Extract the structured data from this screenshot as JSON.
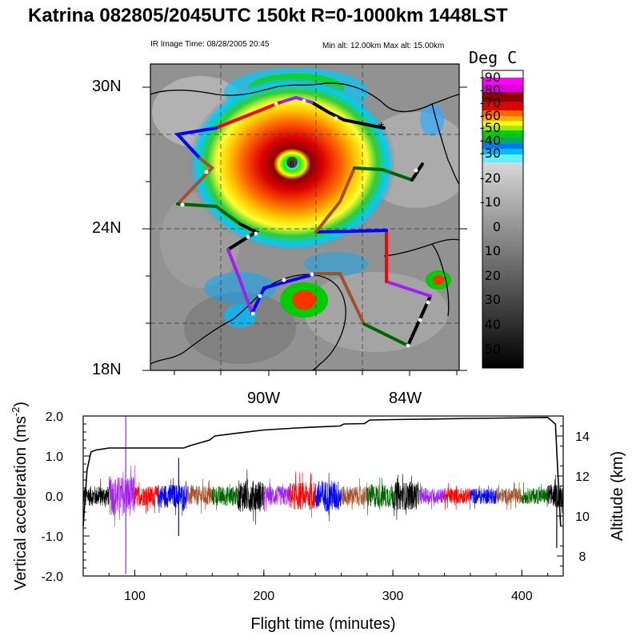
{
  "title": "Katrina 082805/2045UTC 150kt  R=0-1000km 1448LST",
  "map": {
    "ir_time": "IR Image Time: 08/28/2005 20:45",
    "alt_range": "Min alt: 12.00km  Max alt: 15.00km",
    "lat_labels": [
      "30N",
      "24N",
      "18N"
    ],
    "lon_labels": [
      "90W",
      "84W"
    ],
    "colorbar": {
      "title": "Deg C",
      "labels": [
        "-90",
        "-80",
        "-70",
        "-60",
        "-50",
        "-40",
        "-30",
        "-20",
        "-10",
        "0",
        "10",
        "20",
        "30",
        "40",
        "50"
      ]
    },
    "track_colors": [
      "#ff0000",
      "#0000ff",
      "#a0522d",
      "#006400",
      "#000000",
      "#a020f0"
    ]
  },
  "chart_data": {
    "type": "line",
    "xlabel": "Flight time (minutes)",
    "ylabel": "Vertical acceleration (ms",
    "ylabel_sup": "-2",
    "ylabel_close": ")",
    "y2label": "Altitude (km)",
    "xlim": [
      60,
      432
    ],
    "ylim": [
      -2.0,
      2.0
    ],
    "y2lim": [
      7,
      15
    ],
    "x_ticks": [
      "100",
      "200",
      "300",
      "400"
    ],
    "y_ticks": [
      "2.0",
      "1.0",
      "0.0",
      "-1.0",
      "-2.0"
    ],
    "y2_ticks": [
      "14",
      "12",
      "10",
      "8"
    ],
    "altitude_series": {
      "name": "Altitude",
      "x": [
        60,
        63,
        66,
        70,
        80,
        100,
        120,
        138,
        142,
        158,
        162,
        180,
        200,
        225,
        240,
        259,
        262,
        278,
        282,
        300,
        330,
        360,
        390,
        420,
        426,
        428,
        430
      ],
      "y": [
        9.5,
        12.3,
        13.2,
        13.3,
        13.4,
        13.4,
        13.4,
        13.4,
        13.5,
        13.8,
        14.0,
        14.15,
        14.3,
        14.4,
        14.45,
        14.5,
        14.6,
        14.62,
        14.8,
        14.82,
        14.85,
        14.88,
        14.9,
        14.93,
        14.6,
        12.0,
        9.5
      ]
    },
    "acceleration_segments": [
      {
        "color": "#000000",
        "x": [
          60,
          80
        ],
        "amp": 0.25
      },
      {
        "color": "#a020f0",
        "x": [
          80,
          100
        ],
        "amp": 0.5
      },
      {
        "color": "#ff0000",
        "x": [
          100,
          118
        ],
        "amp": 0.25
      },
      {
        "color": "#0000ff",
        "x": [
          118,
          140
        ],
        "amp": 0.3
      },
      {
        "color": "#a0522d",
        "x": [
          140,
          160
        ],
        "amp": 0.25
      },
      {
        "color": "#006400",
        "x": [
          160,
          180
        ],
        "amp": 0.25
      },
      {
        "color": "#000000",
        "x": [
          180,
          200
        ],
        "amp": 0.4
      },
      {
        "color": "#a020f0",
        "x": [
          200,
          220
        ],
        "amp": 0.25
      },
      {
        "color": "#ff0000",
        "x": [
          220,
          240
        ],
        "amp": 0.35
      },
      {
        "color": "#0000ff",
        "x": [
          240,
          260
        ],
        "amp": 0.4
      },
      {
        "color": "#a0522d",
        "x": [
          260,
          280
        ],
        "amp": 0.25
      },
      {
        "color": "#006400",
        "x": [
          280,
          300
        ],
        "amp": 0.3
      },
      {
        "color": "#000000",
        "x": [
          300,
          320
        ],
        "amp": 0.35
      },
      {
        "color": "#a020f0",
        "x": [
          320,
          340
        ],
        "amp": 0.2
      },
      {
        "color": "#ff0000",
        "x": [
          340,
          360
        ],
        "amp": 0.2
      },
      {
        "color": "#0000ff",
        "x": [
          360,
          380
        ],
        "amp": 0.2
      },
      {
        "color": "#a0522d",
        "x": [
          380,
          400
        ],
        "amp": 0.2
      },
      {
        "color": "#006400",
        "x": [
          400,
          420
        ],
        "amp": 0.2
      },
      {
        "color": "#000000",
        "x": [
          420,
          432
        ],
        "amp": 0.3
      }
    ],
    "spikes": [
      {
        "x": 93,
        "y": 2.0,
        "color": "#a020f0"
      },
      {
        "x": 93,
        "y": -1.95,
        "color": "#a020f0"
      },
      {
        "x": 134,
        "y": 0.95,
        "color": "#0000ff"
      },
      {
        "x": 134,
        "y": -1.0,
        "color": "#0000ff"
      },
      {
        "x": 427,
        "y": -1.3,
        "color": "#000000"
      }
    ]
  }
}
